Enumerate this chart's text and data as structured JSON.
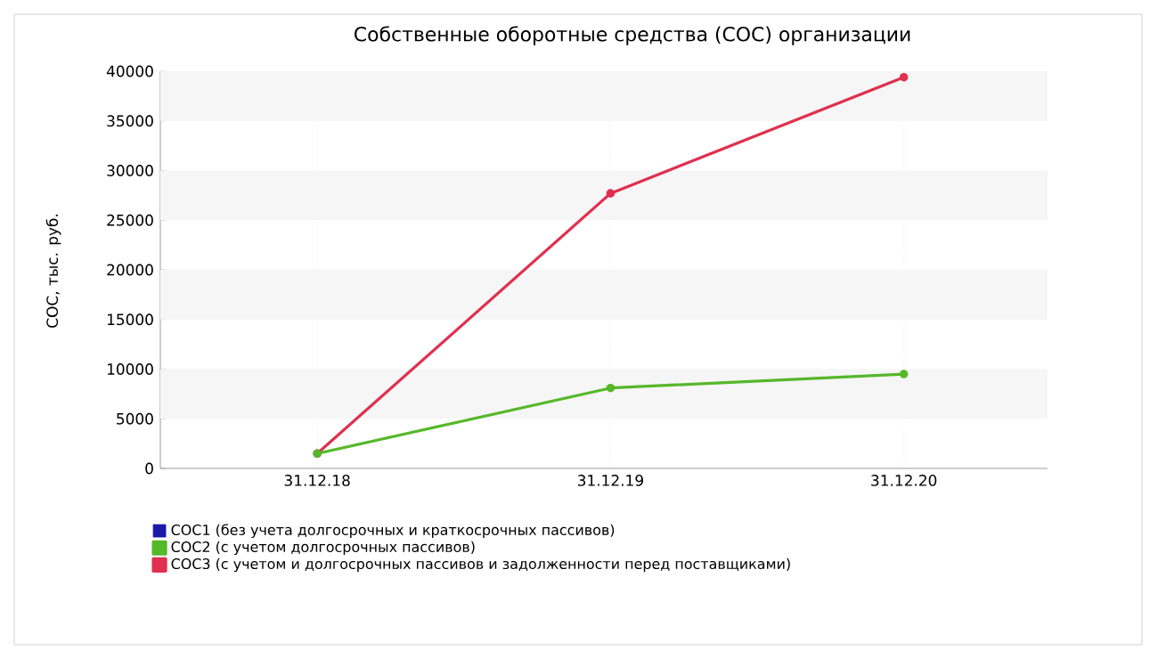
{
  "chart_data": {
    "type": "line",
    "title": "Собственные оборотные средства (СОС) организации",
    "ylabel": "СОС, тыс. руб.",
    "categories": [
      "31.12.18",
      "31.12.19",
      "31.12.20"
    ],
    "series": [
      {
        "name": "СОС1 (без учета долгосрочных и краткосрочных пассивов)",
        "color": "#1a1aa6",
        "values": [
          null,
          null,
          null
        ]
      },
      {
        "name": "СОС2 (с учетом долгосрочных пассивов)",
        "color": "#55b82a",
        "values": [
          1500,
          8100,
          9500
        ]
      },
      {
        "name": "СОС3 (с учетом и долгосрочных пассивов и задолженности перед поставщиками)",
        "color": "#e0304f",
        "values": [
          1500,
          27700,
          39400
        ]
      }
    ],
    "ylim": [
      0,
      40000
    ],
    "yticks": [
      0,
      5000,
      10000,
      15000,
      20000,
      25000,
      30000,
      35000,
      40000
    ],
    "grid": true,
    "legend": "bottom left",
    "marker": "circle",
    "line_style": "solid"
  }
}
